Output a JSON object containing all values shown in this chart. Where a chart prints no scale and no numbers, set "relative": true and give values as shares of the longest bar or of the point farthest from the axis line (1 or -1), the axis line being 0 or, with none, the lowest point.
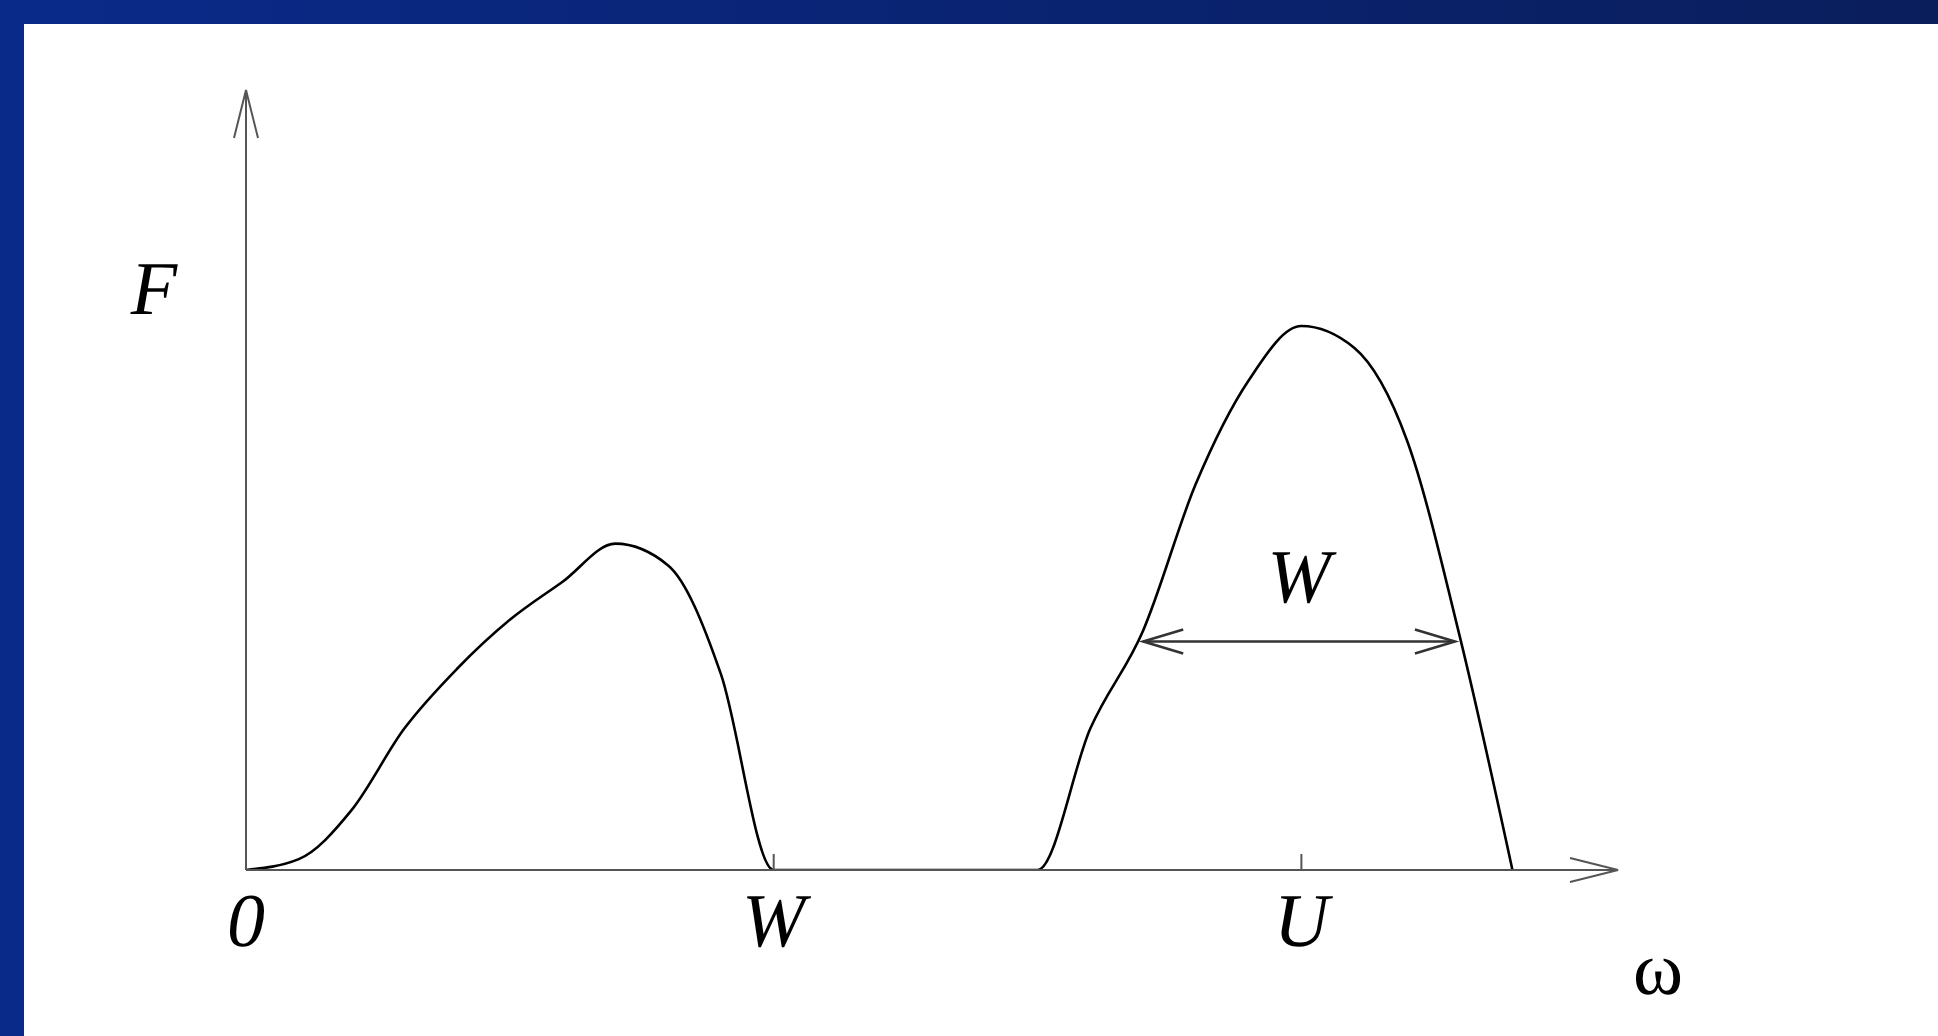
{
  "chart_data": {
    "type": "line",
    "xlabel": "ω",
    "ylabel": "F",
    "relative": true,
    "categories": [
      "0",
      null,
      null,
      null,
      null,
      null,
      null,
      null,
      null,
      null,
      "W",
      null,
      null,
      null,
      null,
      null,
      null,
      null,
      null,
      null,
      "U",
      null,
      null,
      null,
      null,
      null,
      null
    ],
    "series": [
      {
        "color": "#000000",
        "values": [
          0,
          0.02,
          0.11,
          0.26,
          0.37,
          0.46,
          0.53,
          0.6,
          0.56,
          0.36,
          0,
          0,
          0,
          0,
          0,
          0,
          0.26,
          0.44,
          0.71,
          0.9,
          1.0,
          0.96,
          0.79,
          0.43,
          0,
          null,
          null
        ]
      }
    ],
    "annotations": [
      "W"
    ],
    "grid": false,
    "legend": false,
    "marker": "none",
    "line_style": "solid"
  }
}
